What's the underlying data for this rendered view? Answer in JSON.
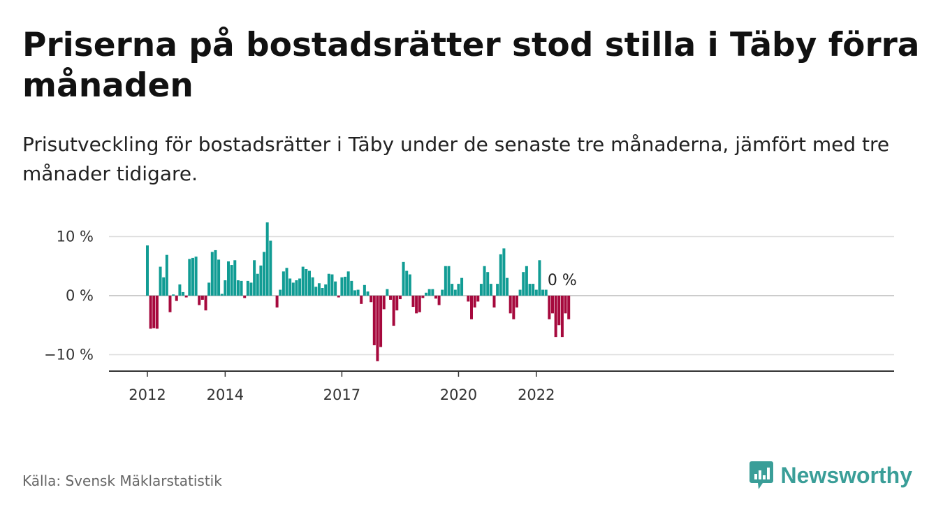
{
  "header": {
    "title": "Priserna på bostadsrätter stod stilla i Täby förra månaden",
    "subtitle": "Prisutveckling för bostadsrätter i Täby under de senaste tre månaderna, jämfört med tre månader tidigare."
  },
  "footer": {
    "source": "Källa: Svensk Mäklarstatistik",
    "brand": "Newsworthy",
    "brand_color": "#3a9e98"
  },
  "chart_data": {
    "type": "bar",
    "title": "Priserna på bostadsrätter stod stilla i Täby förra månaden",
    "subtitle": "Prisutveckling för bostadsrätter i Täby under de senaste tre månaderna, jämfört med tre månader tidigare.",
    "xlabel": "",
    "ylabel": "",
    "start_month": "2012-01",
    "ylim": [
      -13,
      10.5
    ],
    "y_ticks": [
      {
        "value": 10,
        "label": "10 %"
      },
      {
        "value": 0,
        "label": "0 %"
      },
      {
        "value": -10,
        "label": "−10 %"
      }
    ],
    "x_ticks": [
      {
        "label": "2012",
        "month_index": 0
      },
      {
        "label": "2014",
        "month_index": 24
      },
      {
        "label": "2017",
        "month_index": 60
      },
      {
        "label": "2020",
        "month_index": 96
      },
      {
        "label": "2022",
        "month_index": 120
      }
    ],
    "grid": true,
    "colors": {
      "positive": "#119c94",
      "negative": "#a6093d",
      "grid": "#dddddd",
      "axis": "#333333"
    },
    "annotation": {
      "text": "0 %",
      "month_index": 131
    },
    "values": [
      8.5,
      -5.6,
      -5.5,
      -5.6,
      4.9,
      3.1,
      6.9,
      -2.8,
      0.2,
      -0.9,
      1.9,
      0.6,
      -0.3,
      6.2,
      6.4,
      6.6,
      -1.6,
      -0.7,
      -2.5,
      2.2,
      7.4,
      7.7,
      6.1,
      0.3,
      2.6,
      5.8,
      5.2,
      6.0,
      2.6,
      2.5,
      -0.4,
      2.5,
      2.2,
      6.0,
      3.7,
      5.1,
      7.4,
      12.4,
      9.3,
      0.0,
      -2.0,
      1.0,
      4.1,
      4.7,
      2.9,
      2.2,
      2.6,
      2.9,
      4.9,
      4.5,
      4.2,
      3.1,
      1.5,
      2.1,
      1.3,
      1.9,
      3.7,
      3.6,
      2.4,
      -0.3,
      3.1,
      3.2,
      4.1,
      2.5,
      0.9,
      1.0,
      -1.4,
      1.8,
      0.7,
      -1.1,
      -8.4,
      -11.1,
      -8.7,
      -2.3,
      1.1,
      -0.7,
      -5.1,
      -2.5,
      -0.6,
      5.7,
      4.2,
      3.6,
      -1.9,
      -3.0,
      -2.8,
      -0.4,
      0.5,
      1.1,
      1.1,
      -0.5,
      -1.6,
      1.0,
      5.0,
      5.0,
      2.0,
      1.0,
      2.0,
      3.0,
      0.0,
      -1.0,
      -4.0,
      -2.0,
      -1.0,
      2.0,
      5.0,
      4.0,
      2.0,
      -2.0,
      2.0,
      7.0,
      8.0,
      3.0,
      -3.0,
      -4.0,
      -2.0,
      1.0,
      4.0,
      5.0,
      2.0,
      2.0,
      1.0,
      6.0,
      1.0,
      1.0,
      -4.0,
      -3.0,
      -7.0,
      -5.0,
      -7.0,
      -3.0,
      -4.0,
      0.0
    ]
  }
}
